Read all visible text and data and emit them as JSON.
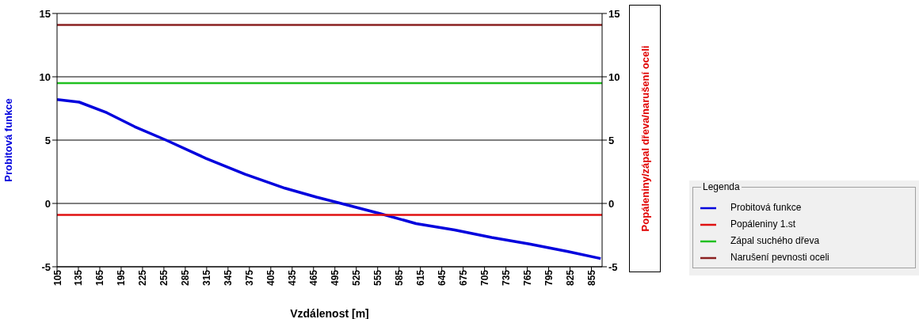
{
  "chart_data": {
    "type": "line",
    "xlabel": "Vzdálenost [m]",
    "ylabel": "Probitová funkce",
    "y2label": "Popáleniny/zápal dřeva/narušení oceli",
    "legend_title": "Legenda",
    "legend": "right",
    "grid": "y",
    "marker": "none",
    "line_style": "solid",
    "xlim": [
      105,
      870
    ],
    "xticks": [
      105,
      135,
      165,
      195,
      225,
      255,
      285,
      315,
      345,
      375,
      405,
      435,
      465,
      495,
      525,
      555,
      585,
      615,
      645,
      675,
      705,
      735,
      765,
      795,
      825,
      855
    ],
    "ylim": [
      -5,
      15
    ],
    "yticks": [
      -5,
      0,
      5,
      10,
      15
    ],
    "y2lim": [
      -5,
      15
    ],
    "y2ticks": [
      -5,
      0,
      5,
      10,
      15
    ],
    "series": [
      {
        "name": "Probitová funkce",
        "color": "#0000dd",
        "x": [
          105,
          136,
          175,
          214,
          258,
          314,
          369,
          425,
          469,
          508,
          558,
          609,
          663,
          715,
          768,
          822,
          868
        ],
        "values": [
          8.2,
          8.0,
          7.16,
          6.06,
          5.0,
          3.56,
          2.3,
          1.2,
          0.5,
          -0.06,
          -0.8,
          -1.59,
          -2.09,
          -2.69,
          -3.2,
          -3.8,
          -4.35
        ]
      },
      {
        "name": "Popáleniny 1.st",
        "color": "#e01010",
        "x": [
          105,
          870
        ],
        "values": [
          -0.9,
          -0.9
        ]
      },
      {
        "name": "Zápal suchého dřeva",
        "color": "#20c020",
        "x": [
          105,
          870
        ],
        "values": [
          9.5,
          9.5
        ]
      },
      {
        "name": "Narušení pevnosti oceli",
        "color": "#8b2020",
        "x": [
          105,
          870
        ],
        "values": [
          14.1,
          14.1
        ]
      }
    ]
  }
}
